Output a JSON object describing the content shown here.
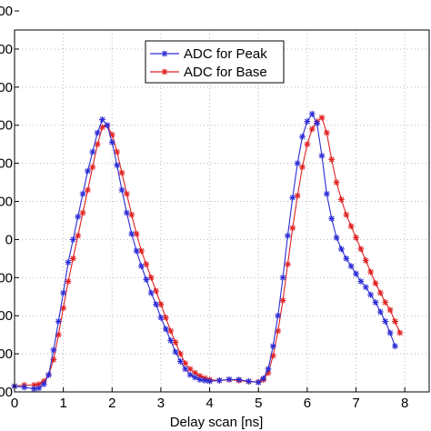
{
  "chart_data": {
    "type": "line",
    "xlabel": "Delay scan [ns]",
    "ylabel": "",
    "xlim": [
      0,
      8.5
    ],
    "ylim": [
      0,
      9.5
    ],
    "xticks": [
      "0",
      "1",
      "2",
      "3",
      "4",
      "5",
      "6",
      "7",
      "8"
    ],
    "yticks": [
      "00",
      "00",
      "00",
      "00",
      "00",
      "00",
      "0",
      "00",
      "00",
      "00",
      "00"
    ],
    "grid": true,
    "legend_position": "top-center",
    "series": [
      {
        "name": "ADC for Peak",
        "color": "#2b2bd6",
        "marker": "star",
        "x": [
          0.0,
          0.2,
          0.4,
          0.5,
          0.6,
          0.7,
          0.8,
          0.9,
          1.0,
          1.1,
          1.2,
          1.3,
          1.4,
          1.5,
          1.6,
          1.7,
          1.8,
          1.9,
          2.0,
          2.1,
          2.2,
          2.3,
          2.4,
          2.5,
          2.6,
          2.7,
          2.8,
          2.9,
          3.0,
          3.1,
          3.2,
          3.3,
          3.4,
          3.5,
          3.6,
          3.7,
          3.8,
          3.9,
          4.0,
          4.2,
          4.4,
          4.6,
          4.8,
          5.0,
          5.1,
          5.2,
          5.3,
          5.4,
          5.5,
          5.6,
          5.7,
          5.8,
          5.9,
          6.0,
          6.1,
          6.2,
          6.3,
          6.4,
          6.5,
          6.6,
          6.7,
          6.8,
          6.9,
          7.0,
          7.1,
          7.2,
          7.3,
          7.4,
          7.5,
          7.6,
          7.7,
          7.8
        ],
        "y": [
          0.15,
          0.12,
          0.08,
          0.1,
          0.2,
          0.45,
          1.1,
          1.85,
          2.6,
          3.4,
          4.0,
          4.6,
          5.2,
          5.8,
          6.3,
          6.8,
          7.15,
          7.0,
          6.55,
          5.95,
          5.3,
          4.7,
          4.15,
          3.7,
          3.3,
          2.95,
          2.6,
          2.3,
          1.95,
          1.65,
          1.35,
          1.05,
          0.8,
          0.6,
          0.45,
          0.38,
          0.32,
          0.3,
          0.28,
          0.3,
          0.33,
          0.32,
          0.28,
          0.25,
          0.35,
          0.6,
          1.2,
          2.0,
          3.0,
          4.1,
          5.1,
          6.0,
          6.7,
          7.1,
          7.3,
          7.05,
          6.2,
          5.2,
          4.55,
          4.05,
          3.75,
          3.5,
          3.3,
          3.1,
          2.9,
          2.75,
          2.55,
          2.35,
          2.1,
          1.85,
          1.55,
          1.2
        ]
      },
      {
        "name": "ADC for Base",
        "color": "#e02020",
        "marker": "star",
        "x": [
          0.0,
          0.2,
          0.4,
          0.5,
          0.6,
          0.7,
          0.8,
          0.9,
          1.0,
          1.1,
          1.2,
          1.3,
          1.4,
          1.5,
          1.6,
          1.7,
          1.8,
          1.9,
          2.0,
          2.1,
          2.2,
          2.3,
          2.4,
          2.5,
          2.6,
          2.7,
          2.8,
          2.9,
          3.0,
          3.1,
          3.2,
          3.3,
          3.4,
          3.5,
          3.6,
          3.7,
          3.8,
          3.9,
          4.0,
          4.2,
          4.4,
          4.6,
          4.8,
          5.0,
          5.1,
          5.2,
          5.3,
          5.4,
          5.5,
          5.6,
          5.7,
          5.8,
          5.9,
          6.0,
          6.1,
          6.2,
          6.3,
          6.4,
          6.5,
          6.6,
          6.7,
          6.8,
          6.9,
          7.0,
          7.1,
          7.2,
          7.3,
          7.4,
          7.5,
          7.6,
          7.7,
          7.8,
          7.9
        ],
        "y": [
          0.15,
          0.18,
          0.18,
          0.2,
          0.28,
          0.45,
          0.85,
          1.5,
          2.2,
          2.9,
          3.5,
          4.1,
          4.7,
          5.3,
          5.9,
          6.5,
          6.95,
          7.0,
          6.75,
          6.3,
          5.75,
          5.2,
          4.65,
          4.15,
          3.7,
          3.35,
          3.0,
          2.65,
          2.3,
          1.95,
          1.6,
          1.3,
          1.0,
          0.75,
          0.6,
          0.5,
          0.42,
          0.36,
          0.32,
          0.3,
          0.32,
          0.3,
          0.27,
          0.26,
          0.32,
          0.5,
          0.95,
          1.6,
          2.4,
          3.35,
          4.3,
          5.15,
          5.9,
          6.5,
          6.9,
          7.1,
          7.2,
          6.8,
          6.1,
          5.5,
          5.05,
          4.65,
          4.35,
          4.05,
          3.75,
          3.45,
          3.15,
          2.85,
          2.6,
          2.35,
          2.15,
          1.85,
          1.55
        ]
      }
    ]
  },
  "legend": {
    "entries": [
      "ADC for Peak",
      "ADC for Base"
    ]
  }
}
